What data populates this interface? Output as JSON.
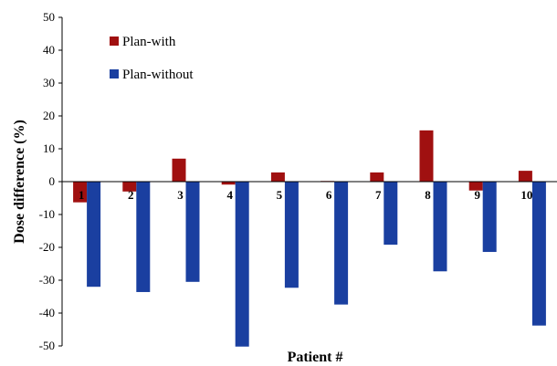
{
  "chart_data": {
    "type": "bar",
    "title": "",
    "xlabel": "Patient #",
    "ylabel": "Dose difference (%)",
    "ylim": [
      -50,
      50
    ],
    "yticks": [
      -50,
      -40,
      -30,
      -20,
      -10,
      0,
      10,
      20,
      30,
      40,
      50
    ],
    "categories": [
      "1",
      "2",
      "3",
      "4",
      "5",
      "6",
      "7",
      "8",
      "9",
      "10"
    ],
    "grid": false,
    "legend_position": "top-left",
    "series": [
      {
        "name": "Plan-with",
        "color": "#a01010",
        "values": [
          -6.3,
          -3.0,
          7.0,
          -0.9,
          2.8,
          0.2,
          2.8,
          15.6,
          -2.7,
          3.3
        ]
      },
      {
        "name": "Plan-without",
        "color": "#1a3fa0",
        "values": [
          -32.0,
          -33.6,
          -30.5,
          -50.2,
          -32.3,
          -37.4,
          -19.2,
          -27.3,
          -21.4,
          -43.8
        ]
      }
    ]
  }
}
